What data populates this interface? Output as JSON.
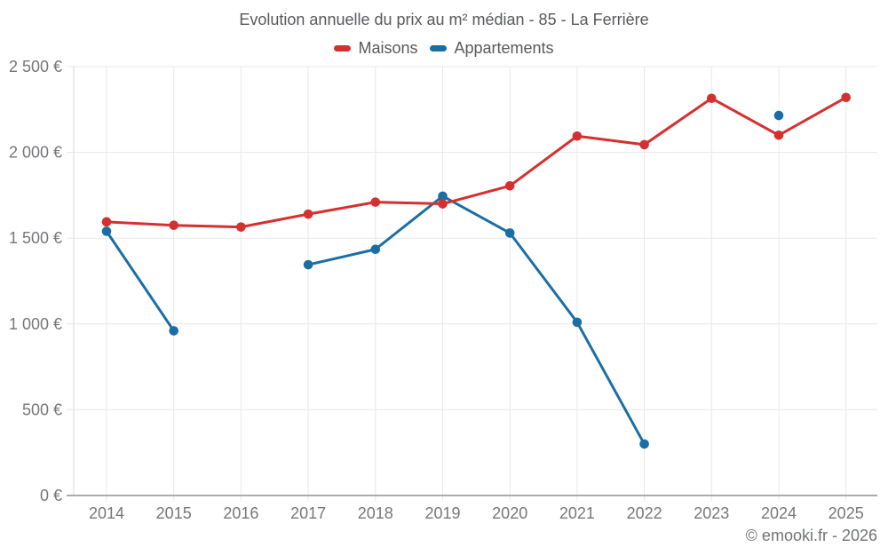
{
  "title": "Evolution annuelle du prix au m² médian - 85 - La Ferrière",
  "footer": "© emooki.fr - 2026",
  "colors": {
    "maisons": "#d62f2f",
    "appartements": "#1a6ea6",
    "grid": "#e8e8e8",
    "axis_x": "#8f9194",
    "axis_y": "#d9d9d9",
    "tick_label": "#76777a",
    "title_text": "#58595b",
    "footer_text": "#717375"
  },
  "chart_data": {
    "type": "line",
    "title": "Evolution annuelle du prix au m² médian - 85 - La Ferrière",
    "categories": [
      "2014",
      "2015",
      "2016",
      "2017",
      "2018",
      "2019",
      "2020",
      "2021",
      "2022",
      "2023",
      "2024",
      "2025"
    ],
    "series": [
      {
        "name": "Maisons",
        "color": "#d62f2f",
        "values": [
          1595,
          1575,
          1565,
          1640,
          1710,
          1700,
          1805,
          2095,
          2045,
          2315,
          2100,
          2320
        ]
      },
      {
        "name": "Appartements",
        "color": "#1a6ea6",
        "values": [
          1540,
          960,
          null,
          1345,
          1435,
          1745,
          1530,
          1010,
          300,
          null,
          2215,
          null
        ]
      }
    ],
    "xlabel": "",
    "ylabel": "",
    "ylim": [
      0,
      2500
    ],
    "ytick_step": 500,
    "ytick_labels": [
      "0 €",
      "500 €",
      "1 000 €",
      "1 500 €",
      "2 000 €",
      "2 500 €"
    ],
    "grid": true,
    "legend_position": "top",
    "marker": "circle"
  }
}
